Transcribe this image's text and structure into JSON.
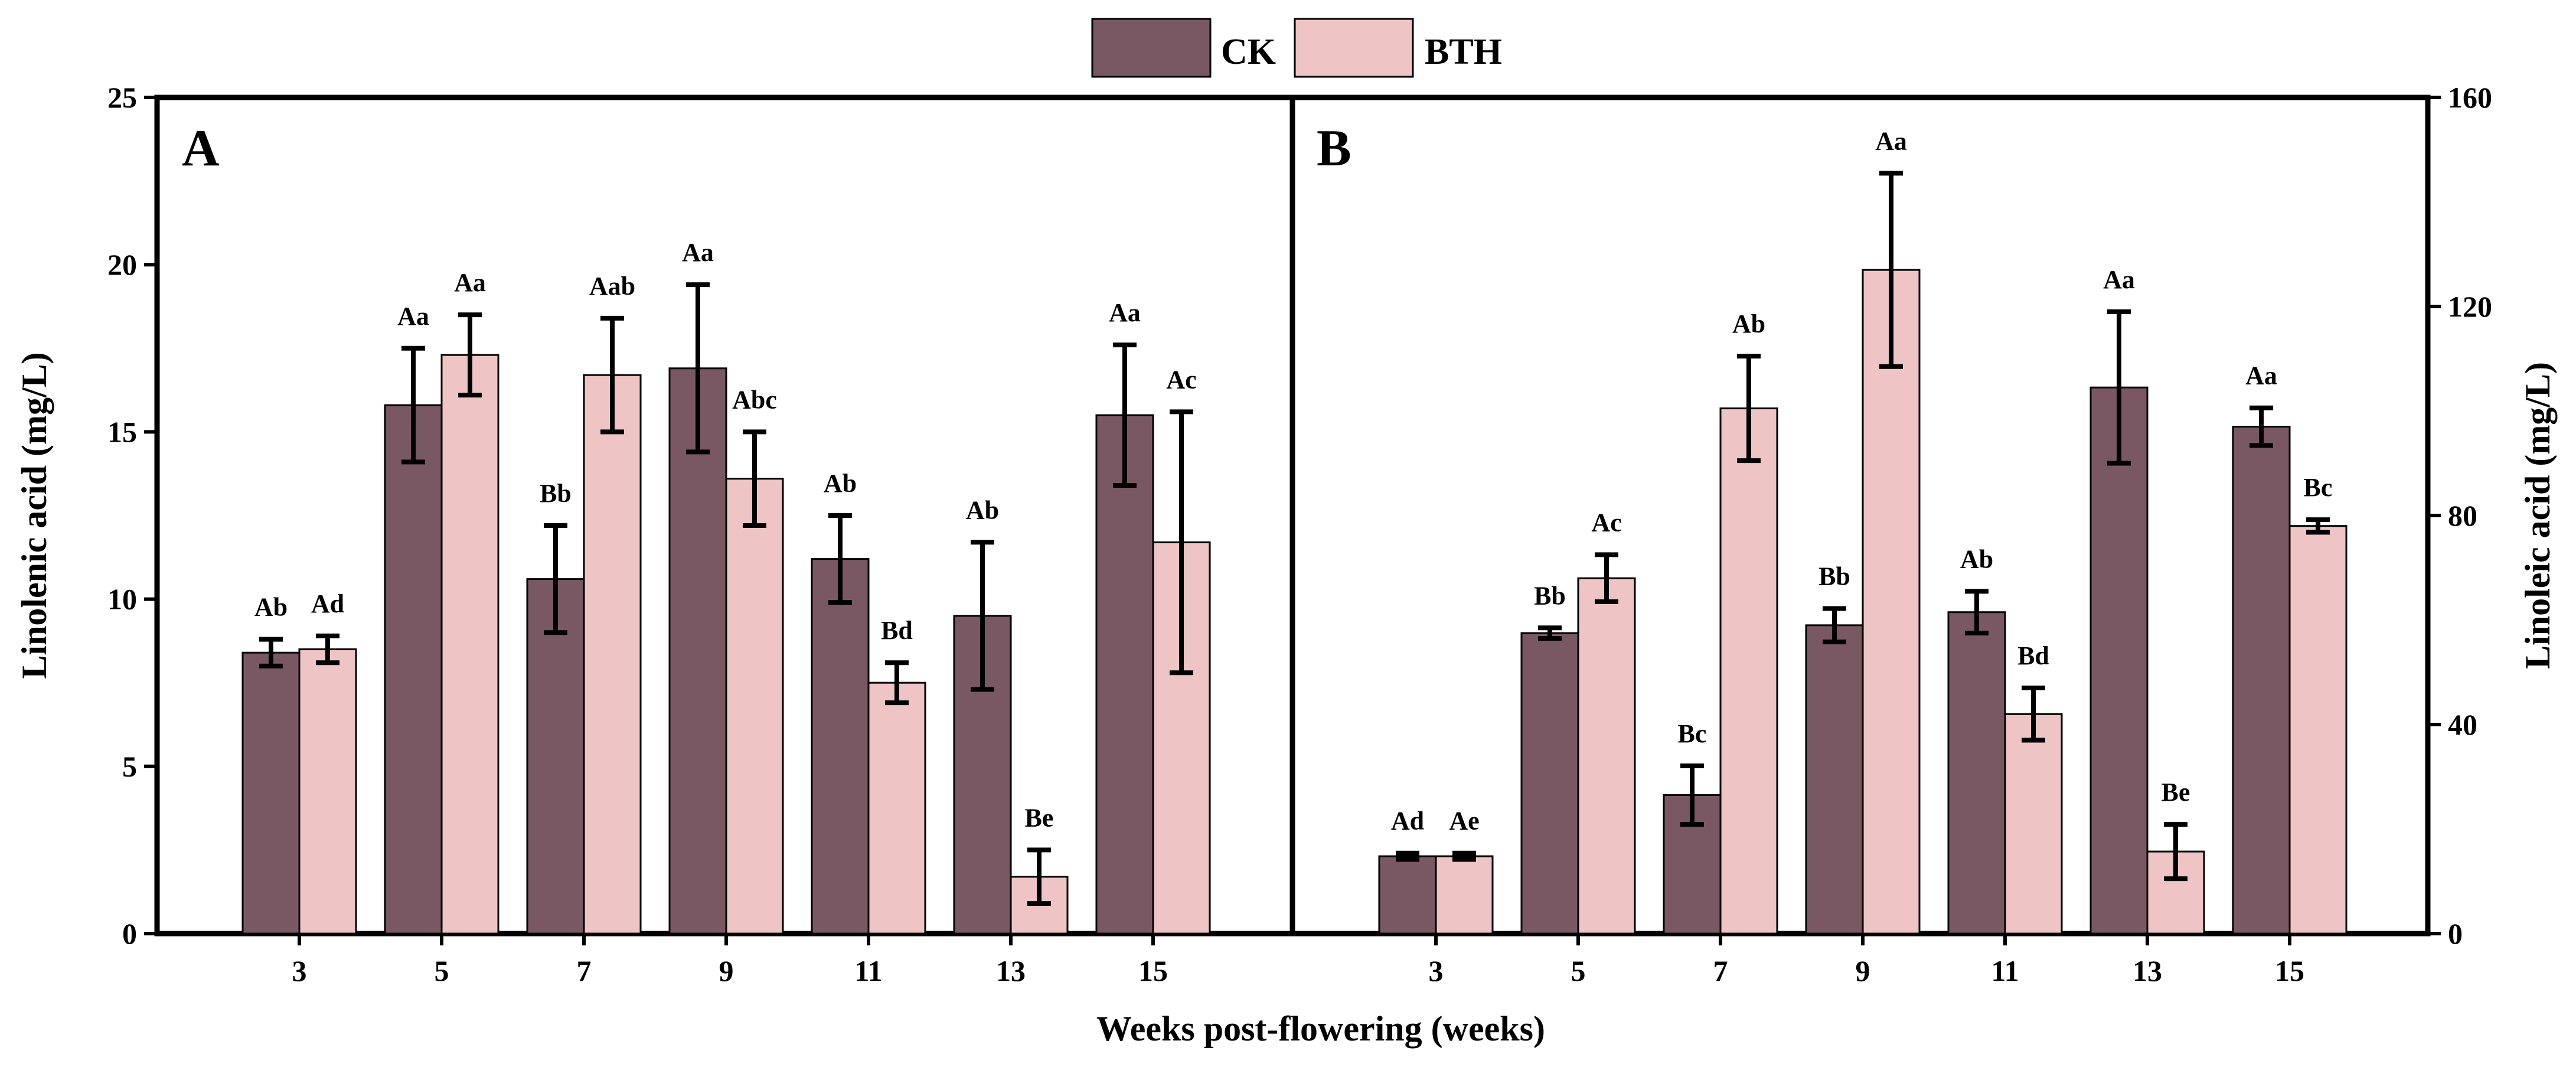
{
  "legend": [
    {
      "name": "CK",
      "color": "#7a5863"
    },
    {
      "name": "BTH",
      "color": "#efc4c4"
    }
  ],
  "chart_data": [
    {
      "type": "bar",
      "panel": "A",
      "categories": [
        "3",
        "5",
        "7",
        "9",
        "11",
        "13",
        "15"
      ],
      "xlabel": "Weeks post-flowering (weeks)",
      "ylabel": "Linolenic acid (mg/L)",
      "ylim": [
        0,
        25
      ],
      "yticks": [
        "0",
        "5",
        "10",
        "15",
        "20",
        "25"
      ],
      "series": [
        {
          "name": "CK",
          "color": "#7a5863",
          "values": [
            8.4,
            15.8,
            10.6,
            16.9,
            11.2,
            9.5,
            15.5
          ],
          "errors": [
            0.4,
            1.7,
            1.6,
            2.5,
            1.3,
            2.2,
            2.1
          ],
          "labels": [
            "Ab",
            "Aa",
            "Bb",
            "Aa",
            "Ab",
            "Ab",
            "Aa"
          ]
        },
        {
          "name": "BTH",
          "color": "#efc4c4",
          "values": [
            8.5,
            17.3,
            16.7,
            13.6,
            7.5,
            1.7,
            11.7
          ],
          "errors": [
            0.4,
            1.2,
            1.7,
            1.4,
            0.6,
            0.8,
            3.9
          ],
          "labels": [
            "Ad",
            "Aa",
            "Aab",
            "Abc",
            "Bd",
            "Be",
            "Ac"
          ]
        }
      ]
    },
    {
      "type": "bar",
      "panel": "B",
      "categories": [
        "3",
        "5",
        "7",
        "9",
        "11",
        "13",
        "15"
      ],
      "xlabel": "Weeks post-flowering (weeks)",
      "ylabel": "Linoleic acid (mg/L)",
      "ylim": [
        0,
        160
      ],
      "yticks": [
        "0",
        "40",
        "80",
        "120",
        "160"
      ],
      "series": [
        {
          "name": "CK",
          "color": "#7a5863",
          "values": [
            14.8,
            57.5,
            26.5,
            59.0,
            61.5,
            104.5,
            97.0
          ],
          "errors": [
            0.6,
            1.0,
            5.6,
            3.2,
            4.0,
            14.5,
            3.6
          ],
          "labels": [
            "Ad",
            "Bb",
            "Bc",
            "Bb",
            "Ab",
            "Aa",
            "Aa"
          ]
        },
        {
          "name": "BTH",
          "color": "#efc4c4",
          "values": [
            14.8,
            68.0,
            100.5,
            127.0,
            42.0,
            15.7,
            78.0
          ],
          "errors": [
            0.6,
            4.5,
            10.0,
            18.5,
            5.0,
            5.2,
            1.2
          ],
          "labels": [
            "Ae",
            "Ac",
            "Ab",
            "Aa",
            "Bd",
            "Be",
            "Bc"
          ]
        }
      ]
    }
  ]
}
